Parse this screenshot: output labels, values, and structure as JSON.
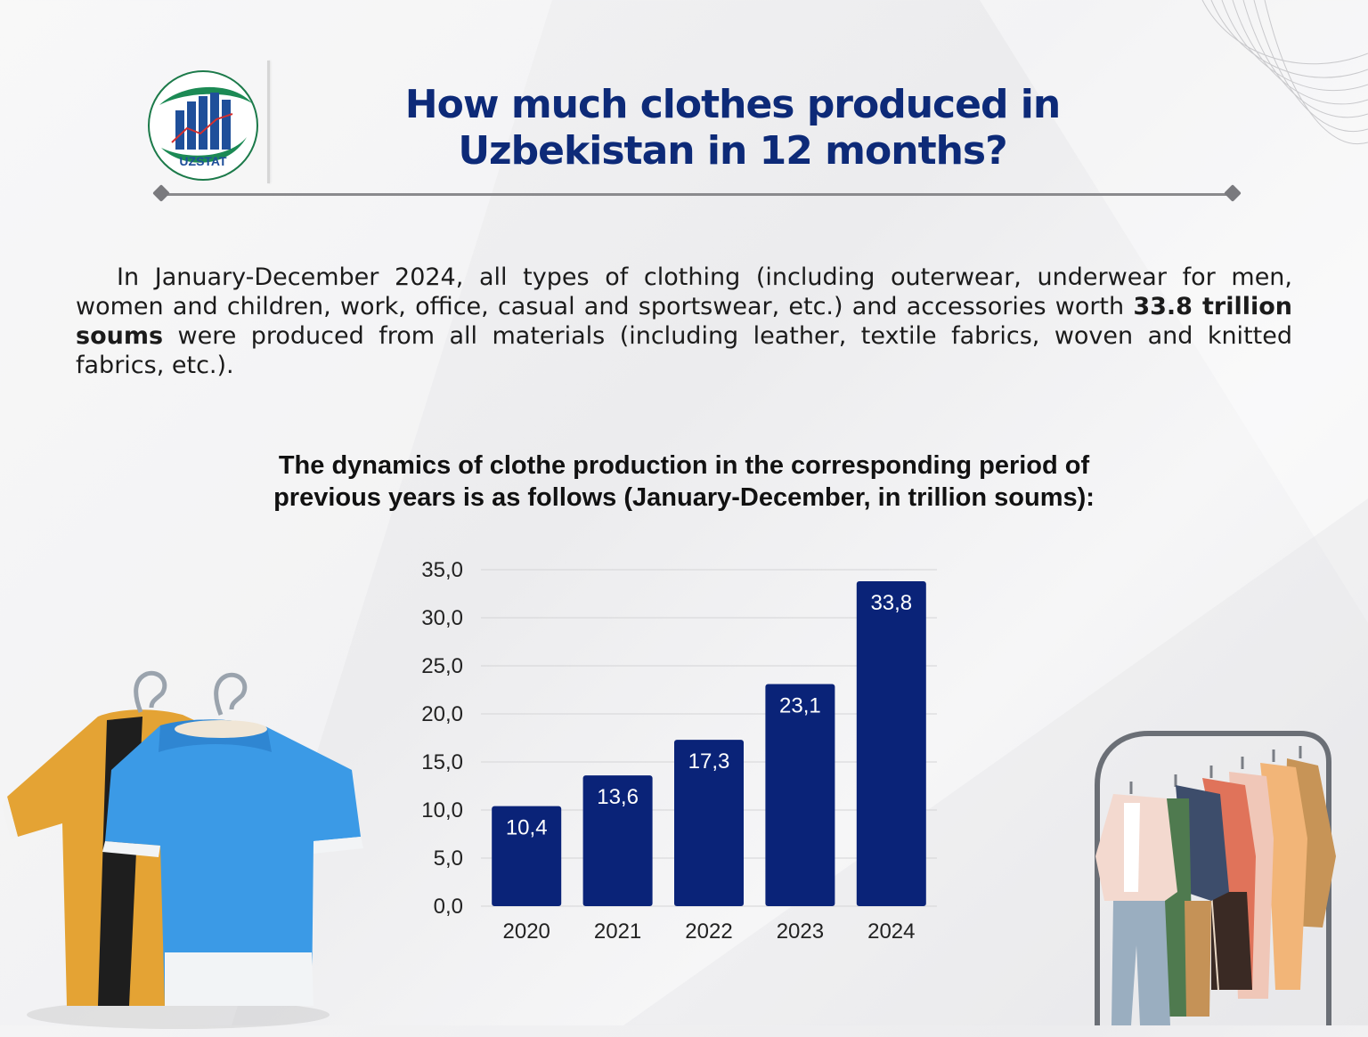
{
  "header": {
    "logo_text": "UZSTAT",
    "title_line1": "How much clothes produced in",
    "title_line2": "Uzbekistan in 12 months?"
  },
  "intro": {
    "text_before": "In January-December 2024, all types of clothing (including outerwear, underwear for men, women and children, work, office, casual and sportswear, etc.) and accessories worth ",
    "text_bold": "33.8 trillion soums",
    "text_after": " were produced from all materials (including leather, textile fabrics, woven and knitted fabrics, etc.)."
  },
  "chart_title": {
    "line1": "The dynamics of clothe production in the corresponding period of",
    "line2": "previous years is as follows (January-December, in trillion soums):"
  },
  "colors": {
    "bar": "#0a2378",
    "title": "#0d2a78",
    "label": "#ffffff"
  },
  "chart_data": {
    "type": "bar",
    "categories": [
      "2020",
      "2021",
      "2022",
      "2023",
      "2024"
    ],
    "values": [
      10.4,
      13.6,
      17.3,
      23.1,
      33.8
    ],
    "value_labels": [
      "10,4",
      "13,6",
      "17,3",
      "23,1",
      "33,8"
    ],
    "title": "The dynamics of clothe production in the corresponding period of previous years is as follows (January-December, in trillion soums):",
    "xlabel": "",
    "ylabel": "",
    "ylim": [
      0,
      35
    ],
    "yticks": [
      0,
      5,
      10,
      15,
      20,
      25,
      30,
      35
    ],
    "ytick_labels": [
      "0,0",
      "5,0",
      "10,0",
      "15,0",
      "20,0",
      "25,0",
      "30,0",
      "35,0"
    ],
    "grid": true,
    "legend": "none"
  },
  "illustrations": {
    "left": "tshirts-on-hangers-icon",
    "right": "clothing-rack-icon"
  }
}
